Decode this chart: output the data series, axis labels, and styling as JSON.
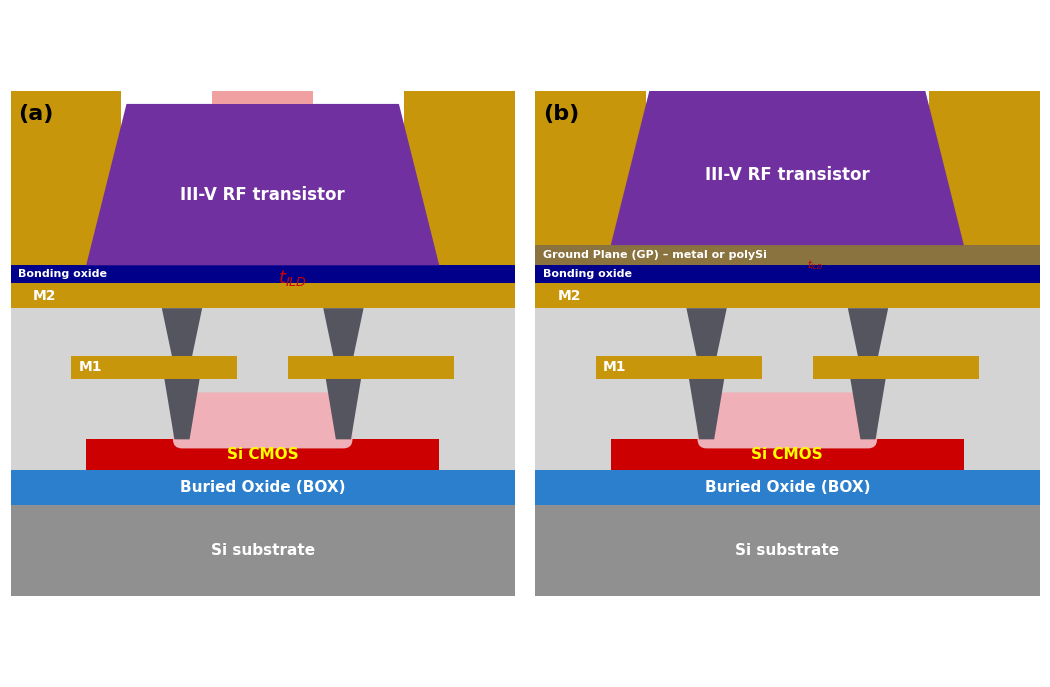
{
  "colors": {
    "background": "#ffffff",
    "substrate": "#909090",
    "box": "#2b7fcc",
    "si_cmos_rect": "#cc0000",
    "si_cmos_bump": "#f0b0b8",
    "si_cmos_connector": "#404060",
    "dielectric": "#d4d4d4",
    "bonding_oxide": "#00008b",
    "m1_m2": "#c8960a",
    "transistor_purple": "#7030a0",
    "transistor_gold": "#c8960a",
    "transistor_pink": "#f0a0a0",
    "via_color": "#555560",
    "ground_plane": "#8b7340",
    "arrow_color": "#cc0000",
    "text_white": "#ffffff",
    "text_yellow": "#ffff00",
    "text_black": "#000000"
  },
  "panel_a_label": "(a)",
  "panel_b_label": "(b)",
  "transistor_label": "III-V RF transistor",
  "bonding_oxide_label": "Bonding oxide",
  "ground_plane_label": "Ground Plane (GP) – metal or polySi",
  "m2_label": "M2",
  "m1_label": "M1",
  "si_cmos_label": "Si CMOS",
  "box_label": "Buried Oxide (BOX)",
  "substrate_label": "Si substrate"
}
